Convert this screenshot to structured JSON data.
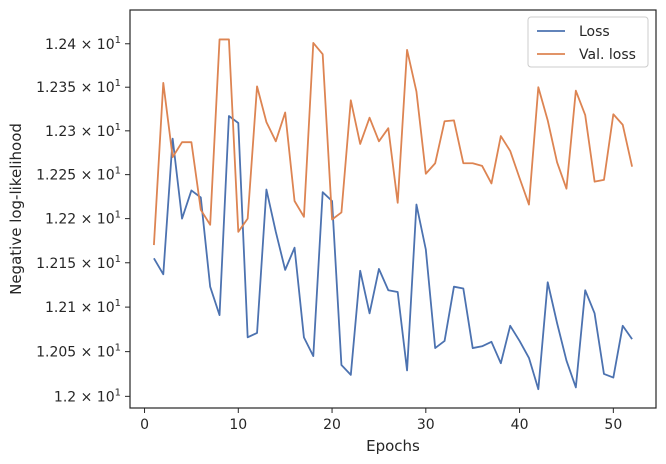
{
  "chart_data": {
    "type": "line",
    "title": "",
    "xlabel": "Epochs",
    "ylabel": "Negative log-likelihood",
    "y_scale": "log",
    "xlim": [
      -1.55,
      54.55
    ],
    "ylim": [
      11.987,
      12.439
    ],
    "xticks": [
      0,
      10,
      20,
      30,
      40,
      50
    ],
    "xtick_labels": [
      "0",
      "10",
      "20",
      "30",
      "40",
      "50"
    ],
    "yticks": [
      12.0,
      12.05,
      12.1,
      12.15,
      12.2,
      12.25,
      12.3,
      12.35,
      12.4
    ],
    "ytick_labels": [
      {
        "mantissa": "1.2",
        "exp": "1"
      },
      {
        "mantissa": "1.205",
        "exp": "1"
      },
      {
        "mantissa": "1.21",
        "exp": "1"
      },
      {
        "mantissa": "1.215",
        "exp": "1"
      },
      {
        "mantissa": "1.22",
        "exp": "1"
      },
      {
        "mantissa": "1.225",
        "exp": "1"
      },
      {
        "mantissa": "1.23",
        "exp": "1"
      },
      {
        "mantissa": "1.235",
        "exp": "1"
      },
      {
        "mantissa": "1.24",
        "exp": "1"
      }
    ],
    "grid": false,
    "legend_position": "top-right",
    "x": [
      1,
      2,
      3,
      4,
      5,
      6,
      7,
      8,
      9,
      10,
      11,
      12,
      13,
      14,
      15,
      16,
      17,
      18,
      19,
      20,
      21,
      22,
      23,
      24,
      25,
      26,
      27,
      28,
      29,
      30,
      31,
      32,
      33,
      34,
      35,
      36,
      37,
      38,
      39,
      40,
      41,
      42,
      43,
      44,
      45,
      46,
      47,
      48,
      49,
      50,
      51,
      52
    ],
    "series": [
      {
        "name": "Loss",
        "color": "#4c72b0",
        "values": [
          12.155,
          12.137,
          12.291,
          12.2,
          12.232,
          12.224,
          12.123,
          12.091,
          12.317,
          12.309,
          12.066,
          12.071,
          12.233,
          12.185,
          12.142,
          12.167,
          12.066,
          12.045,
          12.23,
          12.22,
          12.035,
          12.024,
          12.141,
          12.093,
          12.143,
          12.119,
          12.117,
          12.029,
          12.216,
          12.165,
          12.054,
          12.062,
          12.123,
          12.121,
          12.054,
          12.056,
          12.061,
          12.037,
          12.079,
          12.062,
          12.043,
          12.008,
          12.128,
          12.082,
          12.04,
          12.01,
          12.119,
          12.093,
          12.025,
          12.021,
          12.079,
          12.064
        ]
      },
      {
        "name": "Val. loss",
        "color": "#dd8452",
        "values": [
          12.17,
          12.355,
          12.27,
          12.287,
          12.287,
          12.21,
          12.193,
          12.405,
          12.405,
          12.185,
          12.2,
          12.351,
          12.31,
          12.288,
          12.321,
          12.22,
          12.202,
          12.401,
          12.388,
          12.199,
          12.207,
          12.335,
          12.285,
          12.315,
          12.288,
          12.303,
          12.218,
          12.393,
          12.345,
          12.251,
          12.263,
          12.311,
          12.312,
          12.263,
          12.263,
          12.26,
          12.24,
          12.294,
          12.277,
          12.246,
          12.216,
          12.35,
          12.312,
          12.264,
          12.234,
          12.346,
          12.318,
          12.242,
          12.244,
          12.319,
          12.307,
          12.259
        ]
      }
    ]
  }
}
